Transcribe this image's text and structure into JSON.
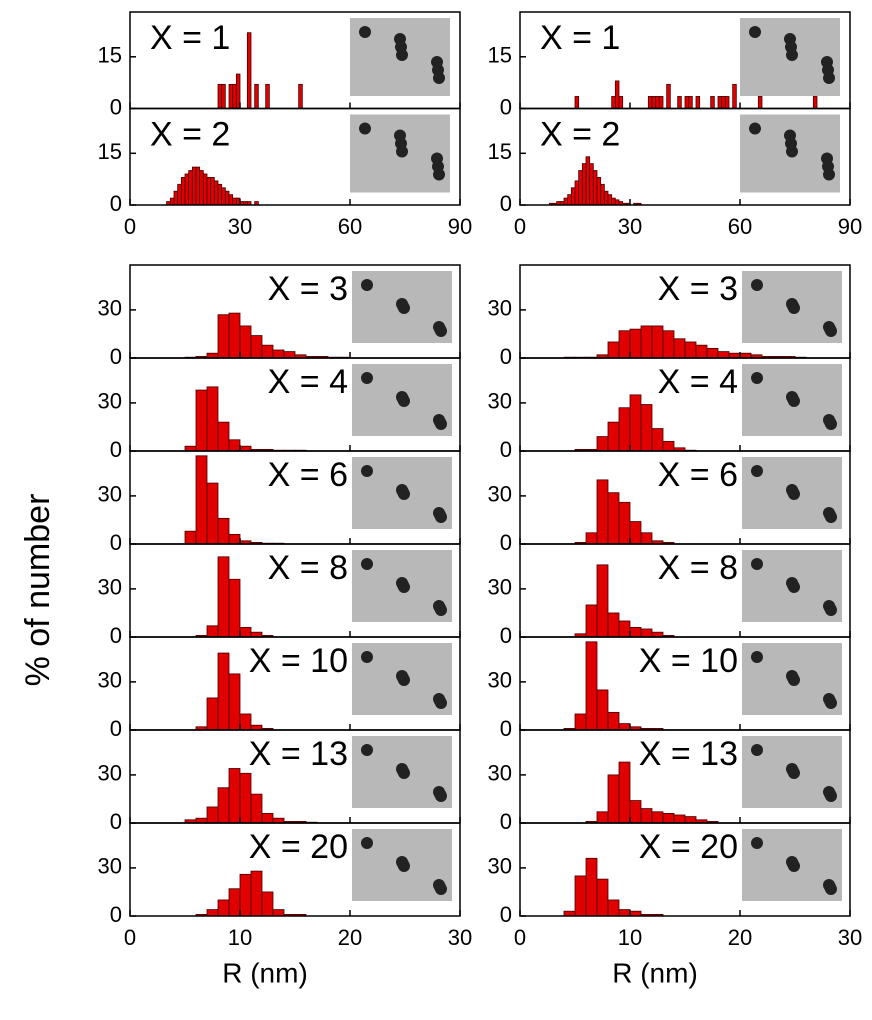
{
  "ylabel": "% of number",
  "chart_data": [
    {
      "type": "histogram",
      "color": "#e00000",
      "xlim": [
        0,
        90
      ],
      "xticks": [
        0,
        30,
        60,
        90
      ],
      "ylim": [
        0,
        28
      ],
      "yticks": [
        0,
        15
      ],
      "panels": [
        {
          "label": "X = 1",
          "bins": [
            24,
            25,
            26,
            27,
            28,
            29,
            30,
            31,
            32,
            33,
            34,
            35,
            36,
            37,
            38,
            39,
            40,
            41,
            42,
            43,
            44,
            45,
            46,
            47
          ],
          "values": [
            7,
            7,
            0,
            7,
            7,
            10,
            0,
            0,
            22,
            0,
            7,
            0,
            0,
            7,
            0,
            0,
            0,
            0,
            0,
            0,
            0,
            0,
            7
          ]
        },
        {
          "label": "X = 2",
          "bins": [
            10,
            11,
            12,
            13,
            14,
            15,
            16,
            17,
            18,
            19,
            20,
            21,
            22,
            23,
            24,
            25,
            26,
            27,
            28,
            29,
            30,
            31,
            32,
            33,
            34,
            35
          ],
          "values": [
            1,
            2,
            4,
            6,
            8,
            9,
            10,
            11,
            11,
            10,
            9,
            8,
            8,
            7,
            6,
            5,
            4,
            3,
            2,
            2,
            1,
            1,
            1,
            0,
            1
          ]
        }
      ]
    },
    {
      "type": "histogram",
      "color": "#e00000",
      "xlim": [
        0,
        90
      ],
      "xticks": [
        0,
        30,
        60,
        90
      ],
      "ylim": [
        0,
        28
      ],
      "yticks": [
        0,
        15
      ],
      "panels": [
        {
          "label": "X = 1",
          "bins": [
            15,
            16,
            17,
            18,
            19,
            20,
            21,
            22,
            23,
            24,
            25,
            26,
            27,
            28,
            29,
            30,
            31,
            32,
            33,
            34,
            35,
            36,
            37,
            38,
            39,
            40,
            41,
            42,
            43,
            44,
            45,
            46,
            47,
            48,
            49,
            50,
            51,
            52,
            53,
            54,
            55,
            56,
            57,
            58,
            59,
            60,
            61,
            62,
            63,
            64,
            65,
            66,
            67,
            68,
            69,
            70,
            71,
            72,
            73,
            74,
            75,
            76,
            77,
            78,
            79,
            80,
            81
          ],
          "values": [
            3.5,
            0,
            0,
            0,
            0,
            0,
            0,
            0,
            0,
            0,
            3.5,
            8,
            3.5,
            0,
            0,
            0,
            0,
            0,
            0,
            0,
            3.5,
            3.5,
            3.5,
            3.5,
            0,
            7,
            0,
            0,
            3.5,
            0,
            3.5,
            3.5,
            0,
            3.5,
            0,
            0,
            0,
            3.5,
            0,
            3.5,
            3.5,
            3.5,
            0,
            7,
            0,
            0,
            0,
            0,
            0,
            0,
            3.5,
            0,
            0,
            0,
            0,
            0,
            0,
            0,
            0,
            0,
            0,
            0,
            0,
            0,
            0,
            3.5
          ]
        },
        {
          "label": "X = 2",
          "bins": [
            8,
            9,
            10,
            11,
            12,
            13,
            14,
            15,
            16,
            17,
            18,
            19,
            20,
            21,
            22,
            23,
            24,
            25,
            26,
            27,
            28,
            29,
            30,
            31,
            32,
            33
          ],
          "values": [
            0.5,
            0.5,
            1,
            1,
            2,
            3,
            5,
            7,
            10,
            12,
            14,
            12,
            10,
            8,
            6,
            4,
            3,
            2,
            1.5,
            1,
            0.5,
            0.5,
            0,
            0.5,
            0.5
          ]
        }
      ]
    },
    {
      "type": "histogram",
      "color": "#e00000",
      "xlim": [
        0,
        30
      ],
      "xticks": [
        0,
        10,
        20,
        30
      ],
      "ylim": [
        0,
        58
      ],
      "yticks": [
        0,
        30
      ],
      "xlabel": "R (nm)",
      "panels": [
        {
          "label": "X = 3",
          "bins": [
            5,
            6,
            7,
            8,
            9,
            10,
            11,
            12,
            13,
            14,
            15,
            16,
            17,
            18,
            19,
            20
          ],
          "values": [
            0.5,
            1,
            3,
            27,
            28,
            20,
            14,
            8,
            5,
            4,
            2,
            1,
            1,
            0.5,
            0.5
          ]
        },
        {
          "label": "X = 4",
          "bins": [
            5,
            6,
            7,
            8,
            9,
            10,
            11,
            12,
            13,
            14,
            15,
            16
          ],
          "values": [
            3,
            38,
            40,
            18,
            7,
            3,
            1,
            1,
            0.5,
            0.5,
            0.5
          ]
        },
        {
          "label": "X = 6",
          "bins": [
            5,
            6,
            7,
            8,
            9,
            10,
            11,
            12,
            13,
            14
          ],
          "values": [
            8,
            55,
            38,
            16,
            6,
            2,
            1,
            0.5,
            0.5
          ]
        },
        {
          "label": "X = 8",
          "bins": [
            6,
            7,
            8,
            9,
            10,
            11,
            12,
            13
          ],
          "values": [
            1,
            7,
            50,
            36,
            6,
            3,
            1
          ]
        },
        {
          "label": "X = 10",
          "bins": [
            6,
            7,
            8,
            9,
            10,
            11,
            12,
            13
          ],
          "values": [
            2,
            20,
            48,
            35,
            10,
            3,
            1
          ]
        },
        {
          "label": "X = 13",
          "bins": [
            5,
            6,
            7,
            8,
            9,
            10,
            11,
            12,
            13,
            14,
            15,
            16,
            17
          ],
          "values": [
            2,
            3,
            10,
            22,
            34,
            31,
            18,
            6,
            3,
            1,
            1,
            0.5
          ]
        },
        {
          "label": "X = 20",
          "bins": [
            6,
            7,
            8,
            9,
            10,
            11,
            12,
            13,
            14,
            15,
            16
          ],
          "values": [
            1,
            4,
            10,
            17,
            26,
            28,
            15,
            4,
            1,
            1
          ]
        }
      ]
    },
    {
      "type": "histogram",
      "color": "#e00000",
      "xlim": [
        0,
        30
      ],
      "xticks": [
        0,
        10,
        20,
        30
      ],
      "ylim": [
        0,
        58
      ],
      "yticks": [
        0,
        30
      ],
      "xlabel": "R (nm)",
      "panels": [
        {
          "label": "X = 3",
          "bins": [
            4,
            5,
            6,
            7,
            8,
            9,
            10,
            11,
            12,
            13,
            14,
            15,
            16,
            17,
            18,
            19,
            20,
            21,
            22,
            23,
            24,
            25,
            26
          ],
          "values": [
            0.5,
            0.5,
            0.5,
            2,
            10,
            17,
            18,
            20,
            20,
            17,
            12,
            10,
            8,
            6,
            4,
            3,
            3,
            2,
            1,
            1,
            1,
            0.5
          ]
        },
        {
          "label": "X = 4",
          "bins": [
            5,
            6,
            7,
            8,
            9,
            10,
            11,
            12,
            13,
            14,
            15,
            16
          ],
          "values": [
            1,
            1,
            9,
            18,
            27,
            35,
            29,
            14,
            6,
            2,
            0.5
          ]
        },
        {
          "label": "X = 6",
          "bins": [
            5,
            6,
            7,
            8,
            9,
            10,
            11,
            12,
            13,
            14
          ],
          "values": [
            1,
            7,
            40,
            32,
            26,
            14,
            7,
            2,
            1
          ]
        },
        {
          "label": "X = 8",
          "bins": [
            5,
            6,
            7,
            8,
            9,
            10,
            11,
            12,
            13,
            14
          ],
          "values": [
            2,
            20,
            45,
            15,
            10,
            6,
            5,
            3,
            1
          ]
        },
        {
          "label": "X = 10",
          "bins": [
            4,
            5,
            6,
            7,
            8,
            9,
            10,
            11,
            12,
            13
          ],
          "values": [
            1,
            10,
            55,
            25,
            11,
            4,
            2,
            1,
            1
          ]
        },
        {
          "label": "X = 13",
          "bins": [
            6,
            7,
            8,
            9,
            10,
            11,
            12,
            13,
            14,
            15,
            16,
            17,
            18
          ],
          "values": [
            1,
            7,
            30,
            38,
            14,
            9,
            7,
            6,
            5,
            4,
            2,
            1
          ]
        },
        {
          "label": "X = 20",
          "bins": [
            4,
            5,
            6,
            7,
            8,
            9,
            10,
            11,
            12,
            13
          ],
          "values": [
            3,
            25,
            36,
            23,
            10,
            4,
            3,
            1,
            1
          ]
        }
      ]
    }
  ]
}
